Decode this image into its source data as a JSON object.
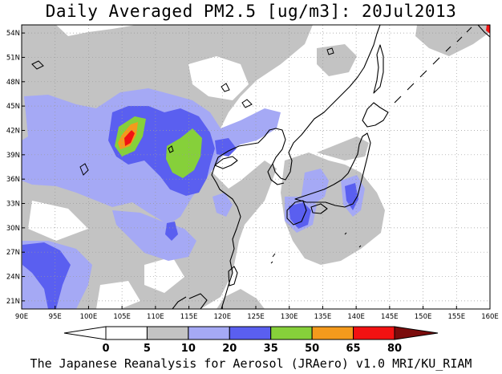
{
  "title": "Daily Averaged PM2.5 [ug/m3]: 20Jul2013",
  "footer": "The Japanese Reanalysis for Aerosol (JRAero) v1.0 MRI/KU_RIAM",
  "map": {
    "lon_range": [
      90,
      160
    ],
    "lat_range": [
      20,
      55
    ],
    "lon_labels": [
      "90E",
      "95E",
      "100E",
      "105E",
      "110E",
      "115E",
      "120E",
      "125E",
      "130E",
      "135E",
      "140E",
      "145E",
      "150E",
      "155E",
      "160E"
    ],
    "lat_labels": [
      "21N",
      "24N",
      "27N",
      "30N",
      "33N",
      "36N",
      "39N",
      "42N",
      "45N",
      "48N",
      "51N",
      "54N"
    ]
  },
  "legend": {
    "levels": [
      "0",
      "5",
      "10",
      "20",
      "35",
      "50",
      "65",
      "80"
    ],
    "colors": {
      "below_0": "#ffffff",
      "0-5": "#ffffff",
      "5-10": "#c3c3c3",
      "10-20": "#a5a9f5",
      "20-35": "#5a5ff0",
      "35-50": "#86d03a",
      "50-65": "#f49a1c",
      "65-80": "#f21212",
      "above_80": "#7b0c0c"
    }
  }
}
